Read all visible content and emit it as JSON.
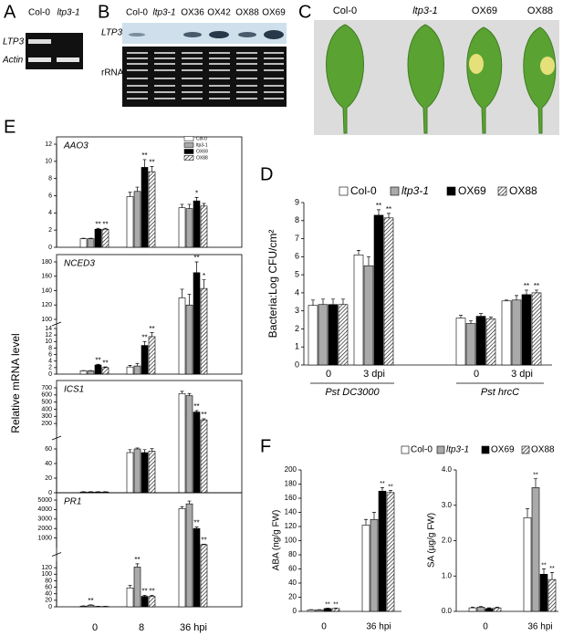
{
  "panel_a": {
    "label": "A",
    "lanes": [
      "Col-0",
      "ltp3-1"
    ],
    "rows": [
      "LTP3",
      "Actin"
    ]
  },
  "panel_b": {
    "label": "B",
    "lanes": [
      "Col-0",
      "ltp3-1",
      "OX36",
      "OX42",
      "OX88",
      "OX69"
    ],
    "rows": [
      "LTP3",
      "rRNA"
    ]
  },
  "panel_c": {
    "label": "C",
    "samples": [
      "Col-0",
      "ltp3-1",
      "OX69",
      "OX88"
    ]
  },
  "chart_data": [
    {
      "type": "bar",
      "panel": "E",
      "ylabel": "Relative mRNA level",
      "categories": [
        "0",
        "8",
        "36 hpi"
      ],
      "legend": [
        {
          "name": "Col-0",
          "color": "#ffffff"
        },
        {
          "name": "ltp3-1",
          "color": "#aaaaaa"
        },
        {
          "name": "OX69",
          "color": "#000000"
        },
        {
          "name": "OX88",
          "color": "#ffffff",
          "hatch": true
        }
      ],
      "subplots": [
        {
          "title": "AAO3",
          "segments": [
            {
              "ylim": [
                0,
                12
              ],
              "yticks": [
                0,
                2,
                4,
                6,
                8,
                10,
                12
              ]
            }
          ],
          "series": [
            {
              "values": [
                1,
                5.9,
                4.6
              ],
              "errors": [
                0.05,
                0.5,
                0.4
              ],
              "significance": [
                null,
                null,
                null
              ]
            },
            {
              "values": [
                1,
                6.5,
                4.5
              ],
              "errors": [
                0.05,
                0.5,
                0.5
              ],
              "significance": [
                null,
                null,
                null
              ]
            },
            {
              "values": [
                2.1,
                9.3,
                5.4
              ],
              "errors": [
                0.1,
                0.9,
                0.4
              ],
              "significance": [
                "**",
                "**",
                "*"
              ]
            },
            {
              "values": [
                2.1,
                8.8,
                4.8
              ],
              "errors": [
                0.1,
                0.6,
                0.3
              ],
              "significance": [
                "**",
                "**",
                null
              ]
            }
          ]
        },
        {
          "title": "NCED3",
          "segments": [
            {
              "ylim": [
                0,
                14
              ],
              "yticks": [
                0,
                2,
                4,
                6,
                8,
                10,
                12,
                14
              ]
            },
            {
              "ylim": [
                100,
                180
              ],
              "yticks": [
                100,
                120,
                140,
                160,
                180
              ]
            }
          ],
          "series": [
            {
              "values": [
                1,
                2.2,
                130
              ],
              "errors": [
                0.1,
                0.5,
                12
              ],
              "significance": [
                null,
                null,
                null
              ]
            },
            {
              "values": [
                1,
                2.5,
                120
              ],
              "errors": [
                0.1,
                0.8,
                15
              ],
              "significance": [
                null,
                null,
                null
              ]
            },
            {
              "values": [
                2.8,
                8.8,
                165
              ],
              "errors": [
                0.2,
                1.2,
                15
              ],
              "significance": [
                "**",
                "**",
                "**"
              ]
            },
            {
              "values": [
                2,
                11.5,
                143
              ],
              "errors": [
                0.2,
                1.2,
                12
              ],
              "significance": [
                "**",
                "**",
                "*"
              ]
            }
          ]
        },
        {
          "title": "ICS1",
          "segments": [
            {
              "ylim": [
                0,
                60
              ],
              "yticks": [
                0,
                20,
                40,
                60
              ]
            },
            {
              "ylim": [
                150,
                700
              ],
              "yticks": [
                200,
                300,
                400,
                500,
                600,
                700
              ]
            }
          ],
          "series": [
            {
              "values": [
                1,
                55,
                620
              ],
              "errors": [
                0.5,
                4,
                30
              ],
              "significance": [
                null,
                null,
                null
              ]
            },
            {
              "values": [
                1,
                60,
                590
              ],
              "errors": [
                0.5,
                4,
                30
              ],
              "significance": [
                null,
                null,
                null
              ]
            },
            {
              "values": [
                1,
                55,
                360
              ],
              "errors": [
                0.5,
                4,
                20
              ],
              "significance": [
                null,
                null,
                "**"
              ]
            },
            {
              "values": [
                1,
                57,
                250
              ],
              "errors": [
                0.5,
                4,
                15
              ],
              "significance": [
                null,
                null,
                "**"
              ]
            }
          ]
        },
        {
          "title": "PR1",
          "segments": [
            {
              "ylim": [
                0,
                140
              ],
              "yticks": [
                0,
                20,
                40,
                60,
                80,
                100,
                120
              ]
            },
            {
              "ylim": [
                0,
                5000
              ],
              "yticks": [
                1000,
                2000,
                3000,
                4000,
                5000
              ]
            }
          ],
          "series": [
            {
              "values": [
                2,
                58,
                4100
              ],
              "errors": [
                1,
                8,
                200
              ],
              "significance": [
                null,
                null,
                null
              ]
            },
            {
              "values": [
                5,
                122,
                4600
              ],
              "errors": [
                1,
                10,
                300
              ],
              "significance": [
                "**",
                "**",
                null
              ]
            },
            {
              "values": [
                1,
                32,
                2000
              ],
              "errors": [
                0.5,
                3,
                150
              ],
              "significance": [
                null,
                "**",
                "**"
              ]
            },
            {
              "values": [
                1,
                32,
                300
              ],
              "errors": [
                0.5,
                3,
                50
              ],
              "significance": [
                null,
                "**",
                "**"
              ]
            }
          ]
        }
      ]
    },
    {
      "type": "bar",
      "panel": "D",
      "ylabel": "Bacteria:Log CFU/cm²",
      "ylim": [
        0,
        9
      ],
      "yticks": [
        0,
        1,
        2,
        3,
        4,
        5,
        6,
        7,
        8,
        9
      ],
      "categories": [
        "0",
        "3 dpi",
        "0",
        "3 dpi"
      ],
      "groups": [
        "Pst DC3000",
        "Pst hrcC"
      ],
      "series": [
        {
          "name": "Col-0",
          "color": "#ffffff",
          "values": [
            3.3,
            6.1,
            2.6,
            3.55
          ],
          "errors": [
            0.3,
            0.25,
            0.15,
            0.05
          ],
          "significance": [
            null,
            null,
            null,
            null
          ]
        },
        {
          "name": "ltp3-1",
          "color": "#aaaaaa",
          "values": [
            3.35,
            5.5,
            2.3,
            3.6
          ],
          "errors": [
            0.3,
            0.5,
            0.15,
            0.25
          ],
          "significance": [
            null,
            null,
            null,
            null
          ]
        },
        {
          "name": "OX69",
          "color": "#000000",
          "values": [
            3.35,
            8.3,
            2.7,
            3.9
          ],
          "errors": [
            0.3,
            0.3,
            0.15,
            0.25
          ],
          "significance": [
            null,
            "**",
            null,
            "**"
          ]
        },
        {
          "name": "OX88",
          "color": "#ffffff",
          "hatch": true,
          "values": [
            3.35,
            8.15,
            2.55,
            4.0
          ],
          "errors": [
            0.3,
            0.25,
            0.1,
            0.15
          ],
          "significance": [
            null,
            "**",
            null,
            "**"
          ]
        }
      ]
    },
    {
      "type": "bar",
      "panel": "F",
      "legend": [
        {
          "name": "Col-0",
          "color": "#ffffff"
        },
        {
          "name": "ltp3-1",
          "color": "#aaaaaa"
        },
        {
          "name": "OX69",
          "color": "#000000"
        },
        {
          "name": "OX88",
          "color": "#ffffff",
          "hatch": true
        }
      ],
      "subplots": [
        {
          "ylabel": "ABA (ng/g FW)",
          "categories": [
            "0",
            "36 hpi"
          ],
          "ylim": [
            0,
            200
          ],
          "yticks": [
            0,
            20,
            40,
            60,
            80,
            100,
            120,
            140,
            160,
            180,
            200
          ],
          "series": [
            {
              "values": [
                2,
                122
              ],
              "errors": [
                0.5,
                8
              ],
              "significance": [
                null,
                null
              ]
            },
            {
              "values": [
                2,
                130
              ],
              "errors": [
                0.5,
                10
              ],
              "significance": [
                null,
                null
              ]
            },
            {
              "values": [
                4,
                170
              ],
              "errors": [
                0.5,
                5
              ],
              "significance": [
                "**",
                "**"
              ]
            },
            {
              "values": [
                4,
                168
              ],
              "errors": [
                0.5,
                3
              ],
              "significance": [
                "**",
                "**"
              ]
            }
          ]
        },
        {
          "ylabel": "SA (µg/g FW)",
          "categories": [
            "0",
            "36 hpi"
          ],
          "ylim": [
            0,
            4
          ],
          "yticks": [
            {
              "value": 0,
              "label": "0.0"
            },
            {
              "value": 1,
              "label": "1.0"
            },
            {
              "value": 2,
              "label": "2.0"
            },
            {
              "value": 3,
              "label": "3.0"
            },
            {
              "value": 4,
              "label": "4.0"
            }
          ],
          "series": [
            {
              "values": [
                0.1,
                2.65
              ],
              "errors": [
                0.02,
                0.25
              ],
              "significance": [
                null,
                null
              ]
            },
            {
              "values": [
                0.12,
                3.5
              ],
              "errors": [
                0.02,
                0.25
              ],
              "significance": [
                null,
                "**"
              ]
            },
            {
              "values": [
                0.08,
                1.05
              ],
              "errors": [
                0.02,
                0.15
              ],
              "significance": [
                null,
                "**"
              ]
            },
            {
              "values": [
                0.1,
                0.9
              ],
              "errors": [
                0.02,
                0.2
              ],
              "significance": [
                null,
                "**"
              ]
            }
          ]
        }
      ]
    }
  ]
}
